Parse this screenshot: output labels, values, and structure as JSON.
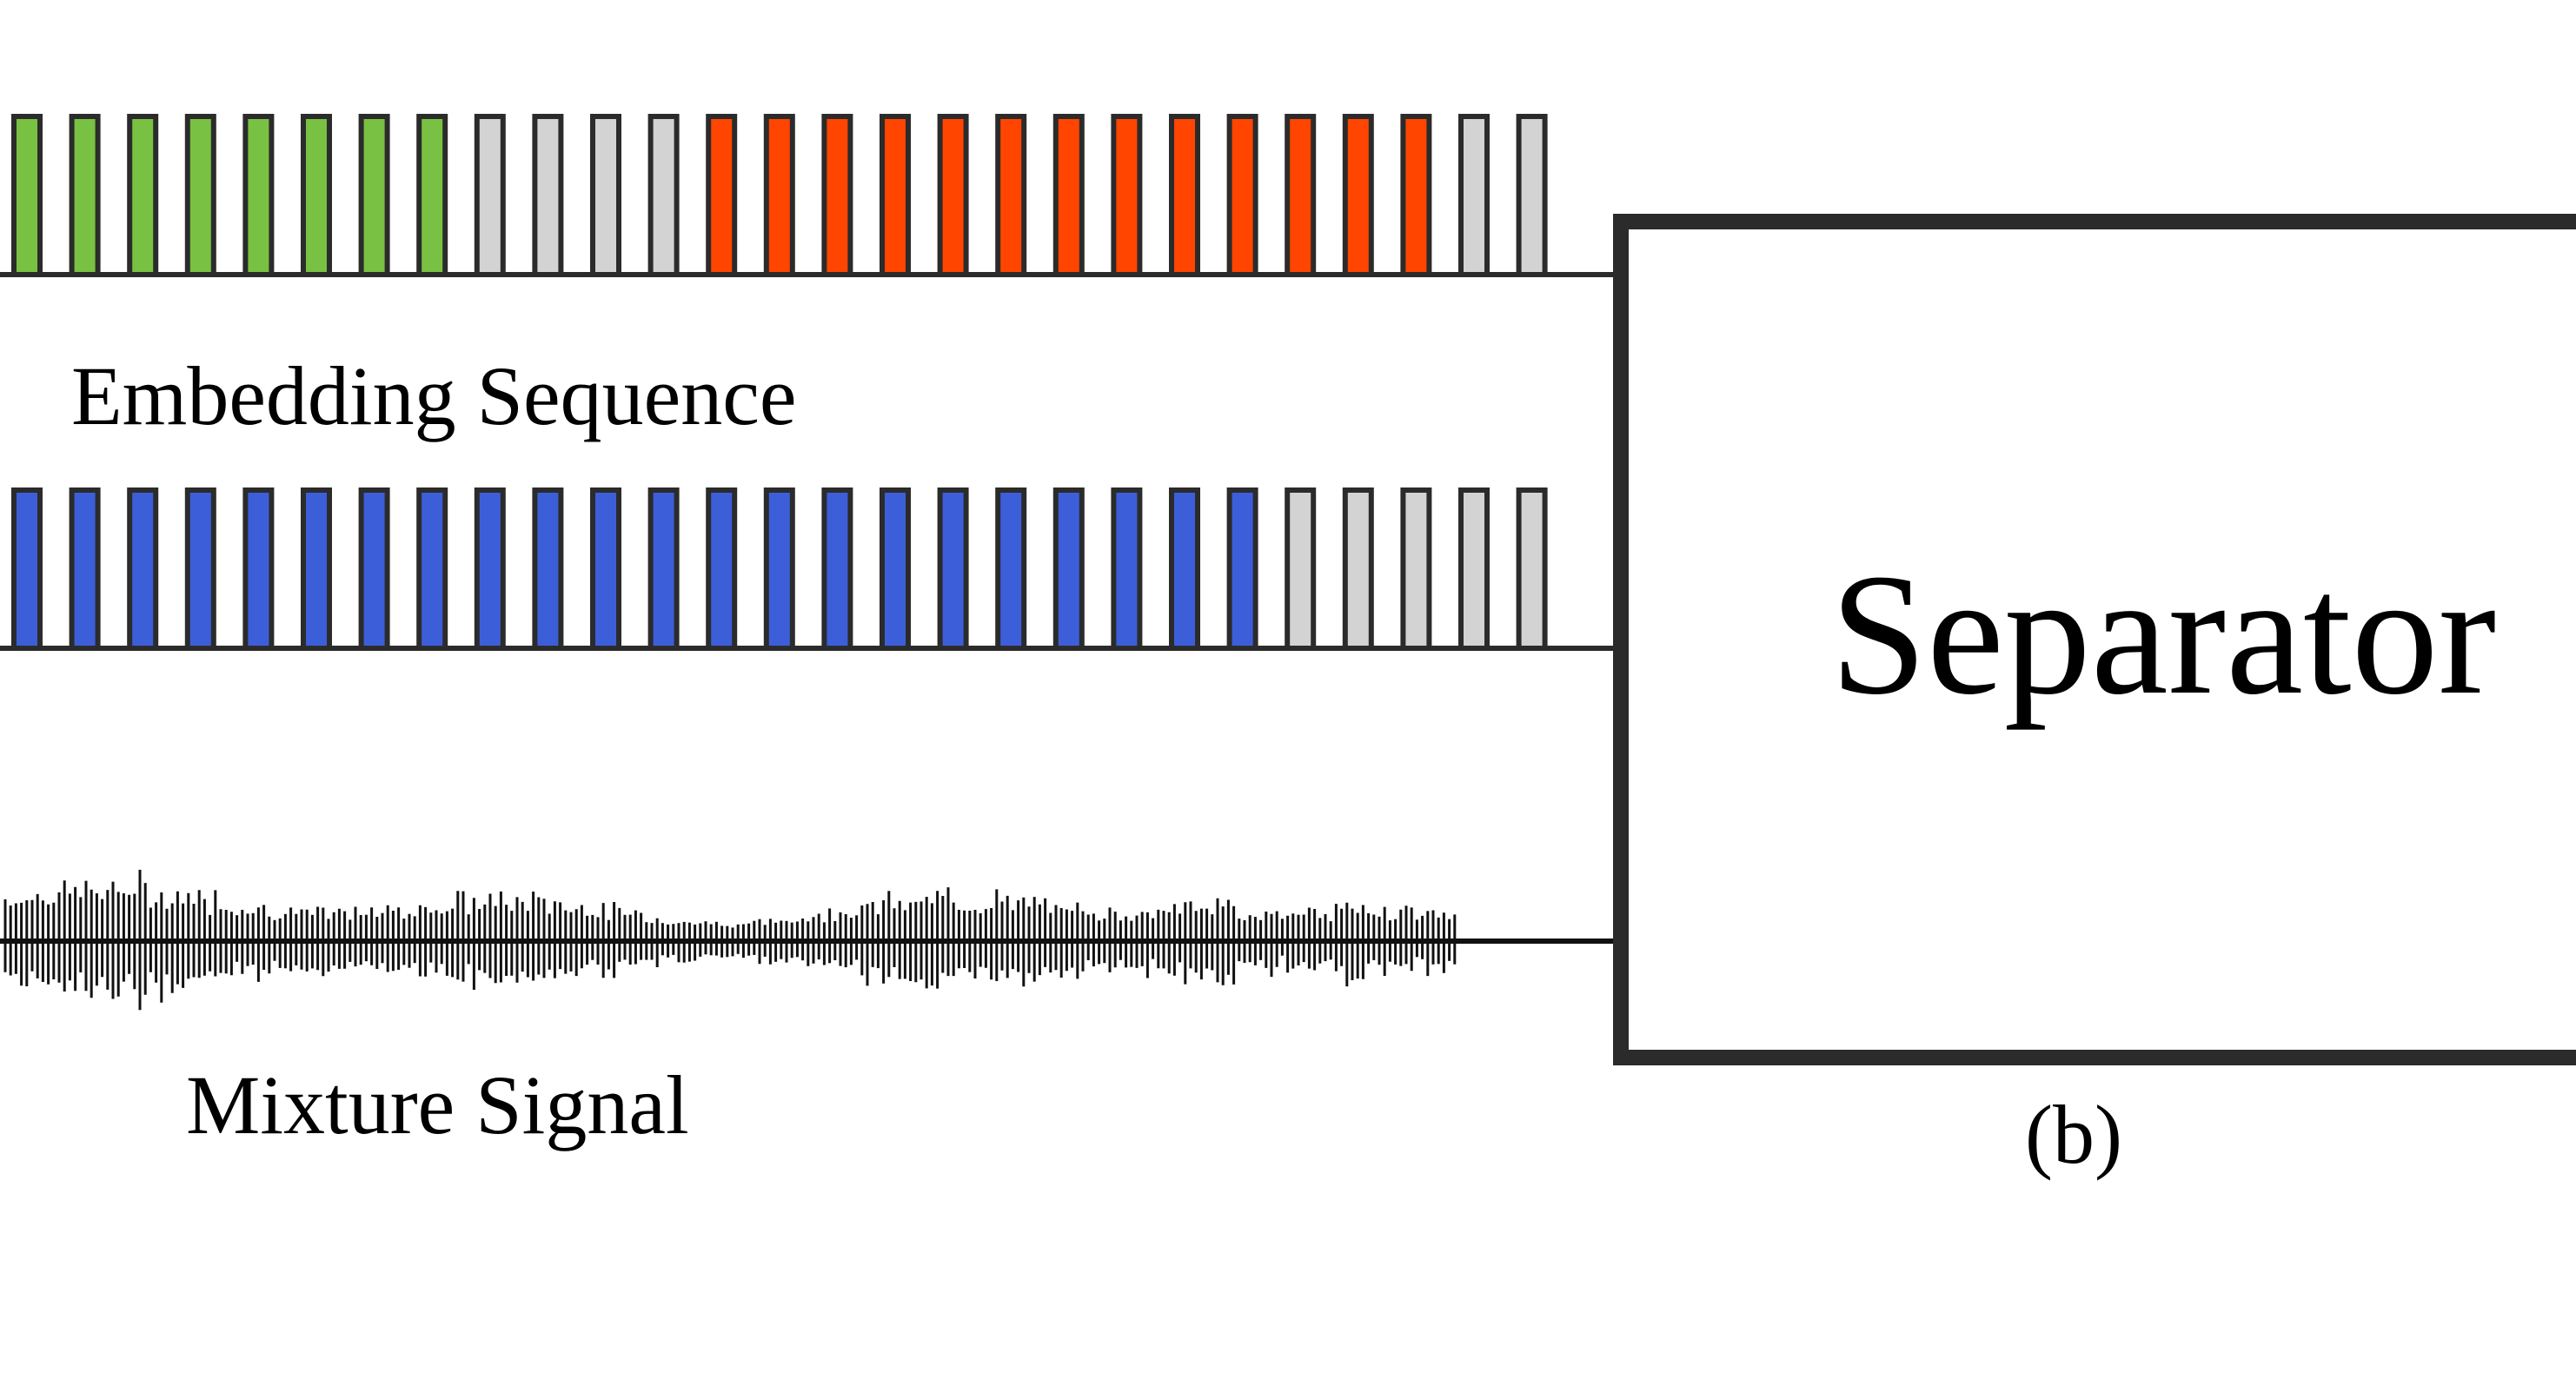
{
  "embedding_sequence": {
    "label": "Embedding Sequence",
    "top_row": [
      "green",
      "green",
      "green",
      "green",
      "green",
      "green",
      "green",
      "green",
      "gray",
      "gray",
      "gray",
      "gray",
      "red",
      "red",
      "red",
      "red",
      "red",
      "red",
      "red",
      "red",
      "red",
      "red",
      "red",
      "red",
      "red",
      "gray",
      "gray"
    ],
    "bottom_row": [
      "blue",
      "blue",
      "blue",
      "blue",
      "blue",
      "blue",
      "blue",
      "blue",
      "blue",
      "blue",
      "blue",
      "blue",
      "blue",
      "blue",
      "blue",
      "blue",
      "blue",
      "blue",
      "blue",
      "blue",
      "blue",
      "blue",
      "gray",
      "gray",
      "gray",
      "gray",
      "gray"
    ]
  },
  "mixture_signal": {
    "label": "Mixture Signal"
  },
  "separator": {
    "label": "Separator"
  },
  "panel_label": "(b)",
  "colors": {
    "green": "#79c142",
    "gray": "#d3d3d3",
    "red": "#ff4500",
    "blue": "#3c5fd9",
    "outline": "#2b2b2b",
    "wave": "#111111"
  }
}
